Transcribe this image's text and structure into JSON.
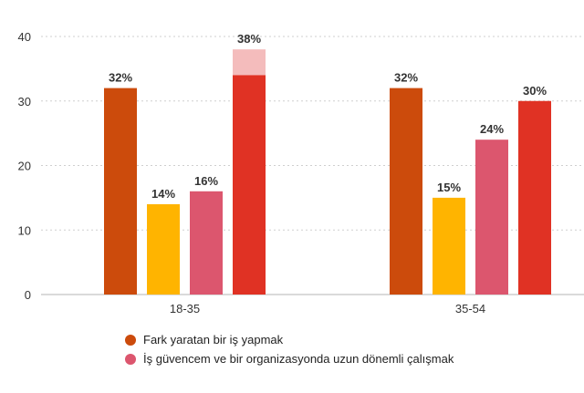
{
  "chart_data": {
    "type": "bar",
    "categories": [
      "18-35",
      "35-54"
    ],
    "ylim": [
      0,
      40
    ],
    "yticks": [
      0,
      10,
      20,
      30,
      40
    ],
    "grid": true,
    "series": [
      {
        "color": "#cc4b0c",
        "values": [
          32,
          32
        ]
      },
      {
        "color": "#ffb400",
        "values": [
          14,
          15
        ]
      },
      {
        "color": "#dc566e",
        "values": [
          16,
          24
        ]
      },
      {
        "color": "#e03224",
        "values": [
          38,
          30
        ]
      }
    ],
    "data_labels": [
      [
        "32%",
        "14%",
        "16%",
        "38%"
      ],
      [
        "32%",
        "15%",
        "24%",
        "30%"
      ]
    ],
    "highlight": {
      "category_index": 0,
      "series_index": 3,
      "base_value": 34,
      "top_color": "#f4bcbc"
    },
    "legend": [
      {
        "label": "Fark yaratan bir iş yapmak",
        "color": "#cc4b0c"
      },
      {
        "label": "İş güvencem ve bir organizasyonda uzun dönemli çalışmak",
        "color": "#dc566e"
      }
    ]
  }
}
